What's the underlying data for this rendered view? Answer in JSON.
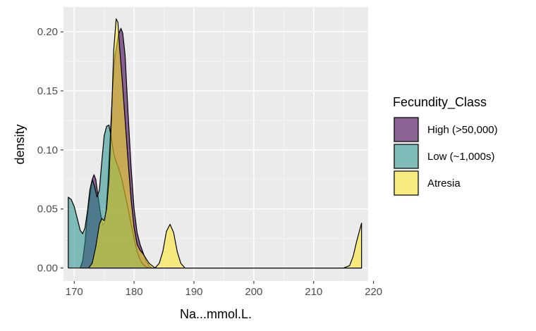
{
  "chart_data": {
    "type": "area",
    "xlabel": "Na...mmol.L.",
    "ylabel": "density",
    "xlim": [
      168.2,
      219.1
    ],
    "ylim": [
      -0.011,
      0.221
    ],
    "x_ticks": [
      170,
      180,
      190,
      200,
      210,
      220
    ],
    "y_ticks": [
      0.0,
      0.05,
      0.1,
      0.15,
      0.2
    ],
    "x_tick_labels": [
      "170",
      "180",
      "190",
      "200",
      "210",
      "220"
    ],
    "y_tick_labels": [
      "0.00",
      "0.05",
      "0.10",
      "0.15",
      "0.20"
    ],
    "grid": true,
    "legend": {
      "title": "Fecundity_Class",
      "position": "right",
      "entries": [
        "High (>50,000)",
        "Low (~1,000s)",
        "Atresia"
      ]
    },
    "series": [
      {
        "name": "High (>50,000)",
        "color": "#440154",
        "opacity": 0.6,
        "points": [
          [
            171.0,
            0.0
          ],
          [
            171.4,
            0.006
          ],
          [
            171.8,
            0.022
          ],
          [
            172.2,
            0.045
          ],
          [
            172.6,
            0.06
          ],
          [
            173.0,
            0.075
          ],
          [
            173.3,
            0.079
          ],
          [
            173.6,
            0.075
          ],
          [
            174.0,
            0.06
          ],
          [
            174.4,
            0.046
          ],
          [
            174.8,
            0.036
          ],
          [
            175.2,
            0.04
          ],
          [
            175.6,
            0.07
          ],
          [
            176.0,
            0.11
          ],
          [
            176.4,
            0.15
          ],
          [
            176.8,
            0.18
          ],
          [
            177.0,
            0.186
          ],
          [
            177.4,
            0.198
          ],
          [
            177.8,
            0.203
          ],
          [
            178.1,
            0.199
          ],
          [
            178.5,
            0.18
          ],
          [
            179.0,
            0.13
          ],
          [
            179.5,
            0.085
          ],
          [
            180.0,
            0.05
          ],
          [
            180.5,
            0.03
          ],
          [
            181.0,
            0.02
          ],
          [
            181.5,
            0.013
          ],
          [
            182.0,
            0.006
          ],
          [
            182.5,
            0.002
          ],
          [
            183.0,
            0.0
          ],
          [
            218.0,
            0.0
          ]
        ]
      },
      {
        "name": "Low (~1,000s)",
        "color": "#21908C",
        "opacity": 0.55,
        "points": [
          [
            169.0,
            0.06
          ],
          [
            169.5,
            0.058
          ],
          [
            170.0,
            0.052
          ],
          [
            170.5,
            0.042
          ],
          [
            171.0,
            0.032
          ],
          [
            171.4,
            0.029
          ],
          [
            171.8,
            0.034
          ],
          [
            172.2,
            0.048
          ],
          [
            172.6,
            0.066
          ],
          [
            173.0,
            0.075
          ],
          [
            173.4,
            0.069
          ],
          [
            173.8,
            0.06
          ],
          [
            174.2,
            0.066
          ],
          [
            174.6,
            0.09
          ],
          [
            175.0,
            0.112
          ],
          [
            175.4,
            0.12
          ],
          [
            175.8,
            0.121
          ],
          [
            176.2,
            0.11
          ],
          [
            176.6,
            0.097
          ],
          [
            177.0,
            0.09
          ],
          [
            177.5,
            0.083
          ],
          [
            178.0,
            0.074
          ],
          [
            178.5,
            0.062
          ],
          [
            179.0,
            0.05
          ],
          [
            179.5,
            0.037
          ],
          [
            180.0,
            0.025
          ],
          [
            180.5,
            0.014
          ],
          [
            181.0,
            0.007
          ],
          [
            181.5,
            0.003
          ],
          [
            182.0,
            0.001
          ],
          [
            182.6,
            0.0
          ],
          [
            218.0,
            0.0
          ]
        ]
      },
      {
        "name": "Atresia",
        "color": "#FDE725",
        "opacity": 0.55,
        "points": [
          [
            172.4,
            0.0
          ],
          [
            173.0,
            0.004
          ],
          [
            173.6,
            0.018
          ],
          [
            174.2,
            0.037
          ],
          [
            174.6,
            0.042
          ],
          [
            175.0,
            0.04
          ],
          [
            175.4,
            0.05
          ],
          [
            175.8,
            0.075
          ],
          [
            176.2,
            0.125
          ],
          [
            176.6,
            0.185
          ],
          [
            177.0,
            0.211
          ],
          [
            177.3,
            0.208
          ],
          [
            177.6,
            0.185
          ],
          [
            178.0,
            0.16
          ],
          [
            178.5,
            0.125
          ],
          [
            179.0,
            0.09
          ],
          [
            179.5,
            0.058
          ],
          [
            180.0,
            0.034
          ],
          [
            180.5,
            0.02
          ],
          [
            181.0,
            0.015
          ],
          [
            181.5,
            0.012
          ],
          [
            182.0,
            0.008
          ],
          [
            182.5,
            0.004
          ],
          [
            183.0,
            0.002
          ],
          [
            183.5,
            0.0
          ],
          [
            184.2,
            0.004
          ],
          [
            184.8,
            0.014
          ],
          [
            185.4,
            0.031
          ],
          [
            186.0,
            0.037
          ],
          [
            186.6,
            0.03
          ],
          [
            187.2,
            0.014
          ],
          [
            187.8,
            0.004
          ],
          [
            188.5,
            0.0
          ],
          [
            215.0,
            0.0
          ],
          [
            216.0,
            0.002
          ],
          [
            216.6,
            0.01
          ],
          [
            217.2,
            0.023
          ],
          [
            218.0,
            0.038
          ]
        ]
      }
    ]
  }
}
